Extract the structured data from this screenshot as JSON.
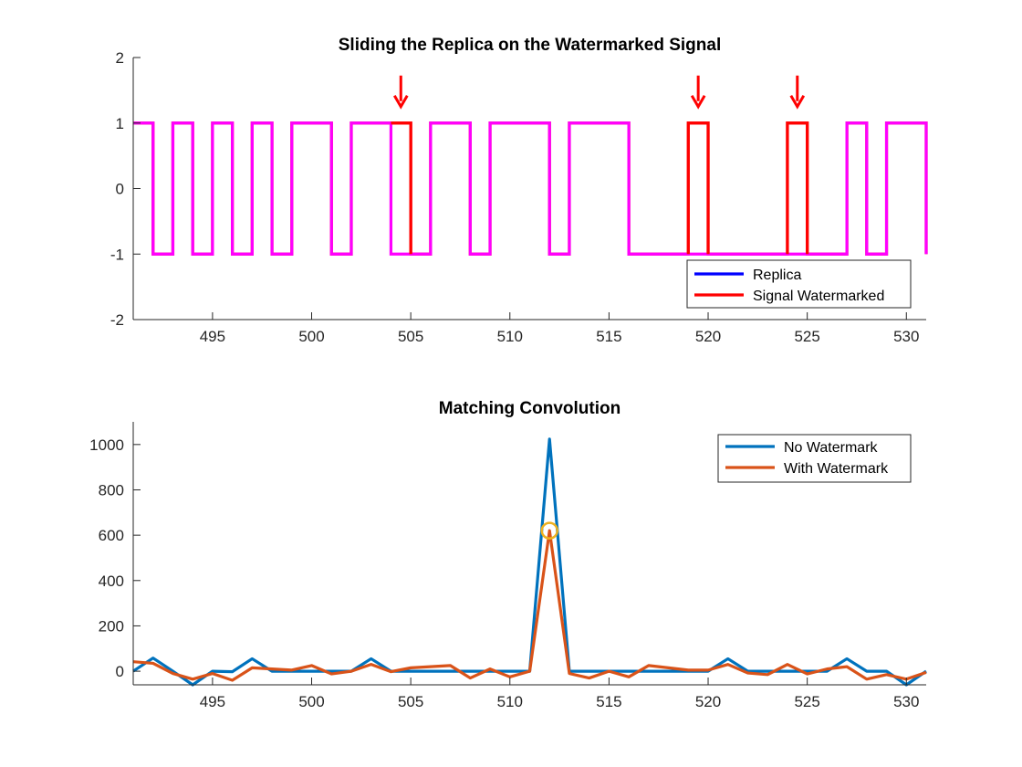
{
  "colors": {
    "replica": "#0000ff",
    "watermarked": "#ff0000",
    "overlap": "#ff00ff",
    "no_watermark": "#0072bd",
    "with_watermark": "#d95319",
    "marker": "#edb120",
    "axis": "#262626"
  },
  "chart_data": [
    {
      "type": "line",
      "title": "Sliding the Replica on the Watermarked Signal",
      "xlabel": "",
      "ylabel": "",
      "xlim": [
        491,
        531
      ],
      "ylim": [
        -2,
        2
      ],
      "xticks": [
        495,
        500,
        505,
        510,
        515,
        520,
        525,
        530
      ],
      "yticks": [
        -2,
        -1,
        0,
        1,
        2
      ],
      "grid": false,
      "legend_position": "bottom-right",
      "step": true,
      "series": [
        {
          "name": "Replica",
          "x": [
            491,
            492,
            493,
            494,
            495,
            496,
            497,
            498,
            499,
            500,
            501,
            502,
            503,
            504,
            505,
            506,
            507,
            508,
            509,
            510,
            511,
            512,
            513,
            514,
            515,
            516,
            517,
            518,
            519,
            520,
            521,
            522,
            523,
            524,
            525,
            526,
            527,
            528,
            529,
            530,
            531
          ],
          "values": [
            1,
            -1,
            1,
            -1,
            1,
            -1,
            1,
            -1,
            1,
            1,
            -1,
            1,
            1,
            -1,
            -1,
            1,
            1,
            -1,
            1,
            1,
            1,
            -1,
            1,
            1,
            1,
            -1,
            -1,
            -1,
            -1,
            -1,
            -1,
            -1,
            -1,
            -1,
            -1,
            -1,
            1,
            -1,
            1,
            1,
            -1
          ]
        },
        {
          "name": "Signal Watermarked",
          "x": [
            491,
            492,
            493,
            494,
            495,
            496,
            497,
            498,
            499,
            500,
            501,
            502,
            503,
            504,
            505,
            506,
            507,
            508,
            509,
            510,
            511,
            512,
            513,
            514,
            515,
            516,
            517,
            518,
            519,
            520,
            521,
            522,
            523,
            524,
            525,
            526,
            527,
            528,
            529,
            530,
            531
          ],
          "values": [
            1,
            -1,
            1,
            -1,
            1,
            -1,
            1,
            -1,
            1,
            1,
            -1,
            1,
            1,
            1,
            -1,
            1,
            1,
            -1,
            1,
            1,
            1,
            -1,
            1,
            1,
            1,
            -1,
            -1,
            -1,
            1,
            -1,
            -1,
            -1,
            -1,
            1,
            -1,
            -1,
            1,
            -1,
            1,
            1,
            -1
          ]
        }
      ],
      "annotations": [
        {
          "type": "arrow",
          "x": 504.5,
          "y": 1
        },
        {
          "type": "arrow",
          "x": 519.5,
          "y": 1
        },
        {
          "type": "arrow",
          "x": 524.5,
          "y": 1
        }
      ]
    },
    {
      "type": "line",
      "title": "Matching Convolution",
      "xlabel": "",
      "ylabel": "",
      "xlim": [
        491,
        531
      ],
      "ylim": [
        -60,
        1100
      ],
      "xticks": [
        495,
        500,
        505,
        510,
        515,
        520,
        525,
        530
      ],
      "yticks": [
        0,
        200,
        400,
        600,
        800,
        1000
      ],
      "grid": false,
      "legend_position": "top-right",
      "series": [
        {
          "name": "No Watermark",
          "x": [
            491,
            492,
            493,
            494,
            495,
            496,
            497,
            498,
            499,
            500,
            501,
            502,
            503,
            504,
            505,
            506,
            507,
            508,
            509,
            510,
            511,
            512,
            513,
            514,
            515,
            516,
            517,
            518,
            519,
            520,
            521,
            522,
            523,
            524,
            525,
            526,
            527,
            528,
            529,
            530,
            531
          ],
          "values": [
            0,
            58,
            0,
            -60,
            0,
            -2,
            55,
            0,
            0,
            0,
            0,
            0,
            55,
            0,
            0,
            0,
            0,
            0,
            0,
            0,
            0,
            1024,
            0,
            0,
            0,
            0,
            0,
            0,
            0,
            0,
            55,
            0,
            0,
            0,
            0,
            0,
            55,
            0,
            0,
            -60,
            0
          ]
        },
        {
          "name": "With Watermark",
          "x": [
            491,
            492,
            493,
            494,
            495,
            496,
            497,
            498,
            499,
            500,
            501,
            502,
            503,
            504,
            505,
            506,
            507,
            508,
            509,
            510,
            511,
            512,
            513,
            514,
            515,
            516,
            517,
            518,
            519,
            520,
            521,
            522,
            523,
            524,
            525,
            526,
            527,
            528,
            529,
            530,
            531
          ],
          "values": [
            42,
            35,
            -10,
            -35,
            -10,
            -40,
            15,
            10,
            5,
            25,
            -12,
            0,
            30,
            -2,
            15,
            20,
            25,
            -30,
            10,
            -25,
            0,
            620,
            -10,
            -30,
            0,
            -25,
            25,
            15,
            5,
            5,
            30,
            -8,
            -15,
            30,
            -12,
            10,
            20,
            -35,
            -15,
            -35,
            -5
          ]
        }
      ],
      "highlight": {
        "x": 512,
        "y": 620
      }
    }
  ]
}
